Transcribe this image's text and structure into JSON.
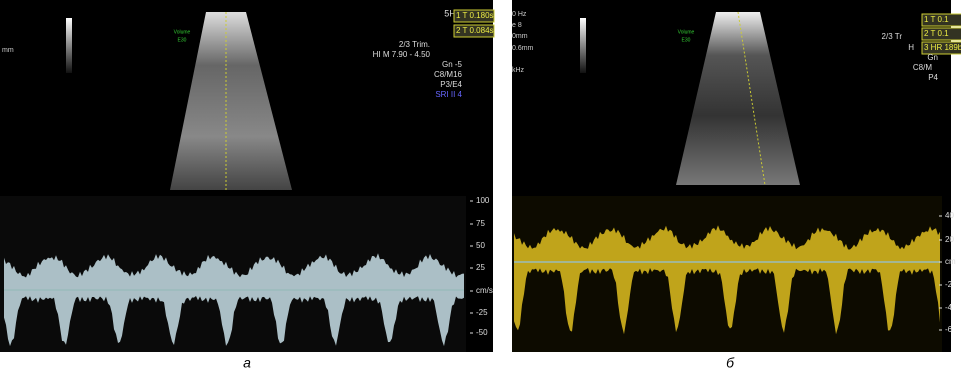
{
  "panels": [
    {
      "caption": "а",
      "side_labels": [
        "mm"
      ],
      "preset": [
        "Volume",
        "E30"
      ],
      "header": "5H",
      "measurements": [
        "1 T 0.180s",
        "2 T 0.084s"
      ],
      "settings": [
        "2/3 Trim.",
        "HI M 7.90 - 4.50",
        "Gn -5",
        "C8/M16",
        "P3/E4"
      ],
      "mode": "SRI II 4",
      "scale": [
        "100",
        "75",
        "50",
        "25",
        "cm/s",
        "-25",
        "-50"
      ]
    },
    {
      "caption": "б",
      "side_labels": [
        "0 Hz",
        "e 8",
        "0mm",
        "0.6mm",
        "kHz"
      ],
      "preset": [
        "Volume",
        "E30"
      ],
      "measurements": [
        "1 T 0.1",
        "2 T 0.1",
        "3 HR 189b"
      ],
      "settings": [
        "2/3 Tr",
        "H",
        "Gn",
        "C8/M",
        "P4"
      ],
      "scale": [
        "40",
        "20",
        "cm",
        "-2",
        "-4",
        "-6"
      ]
    }
  ]
}
